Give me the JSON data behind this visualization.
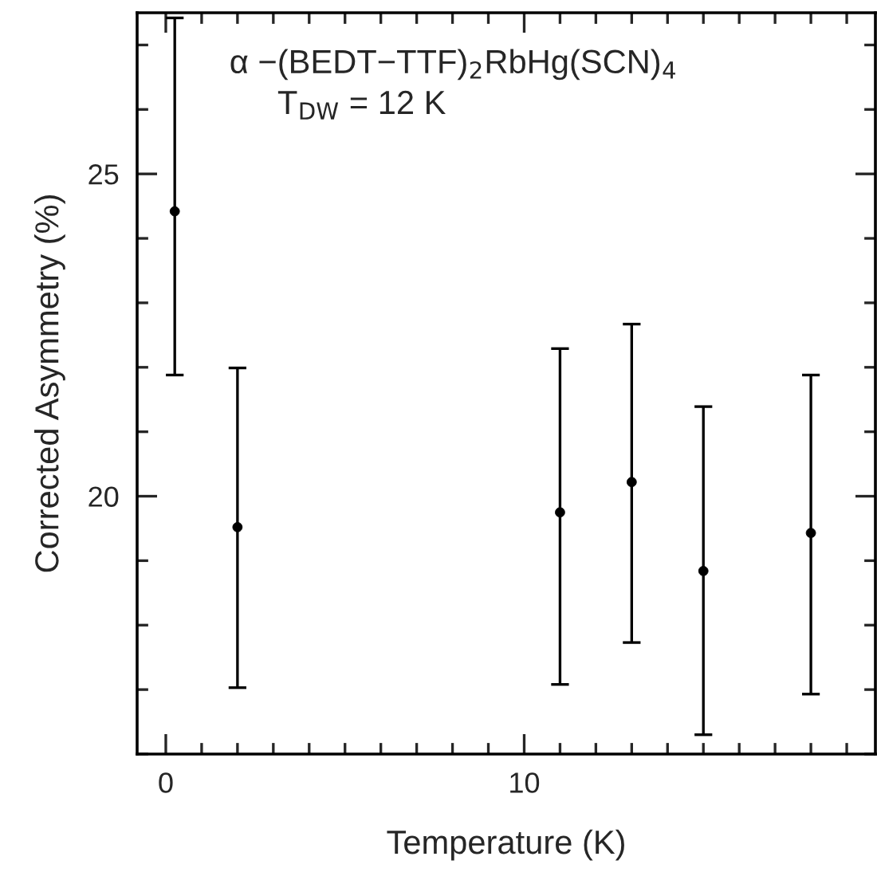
{
  "chart_data": {
    "type": "scatter",
    "xlabel": "Temperature (K)",
    "ylabel": "Corrected Asymmetry (%)",
    "annotations": [
      "α −(BEDT−TTF)$_{2}$RbHg(SCN)$_{4}$",
      "T$_{DW}$ = 12 K"
    ],
    "x": [
      0.25,
      2,
      11,
      13,
      15,
      18
    ],
    "values": [
      24.42,
      19.52,
      19.75,
      20.22,
      18.84,
      19.43
    ],
    "errors": [
      [
        21.88,
        27.42
      ],
      [
        17.03,
        21.99
      ],
      [
        17.08,
        22.29
      ],
      [
        17.73,
        22.67
      ],
      [
        16.3,
        21.39
      ],
      [
        16.93,
        21.88
      ]
    ],
    "color": "#000000",
    "marker": "circle",
    "grid": false,
    "legend": false,
    "xlim": [
      -0.8,
      19.8
    ],
    "ylim": [
      16,
      27.5
    ],
    "xticks": [
      0,
      {
        "value": 1,
        "label": null
      },
      {
        "value": 2,
        "label": null
      },
      {
        "value": 3,
        "label": null
      },
      {
        "value": 4,
        "label": null
      },
      {
        "value": 5,
        "label": null
      },
      {
        "value": 6,
        "label": null
      },
      {
        "value": 7,
        "label": null
      },
      {
        "value": 8,
        "label": null
      },
      {
        "value": 9,
        "label": null
      },
      10,
      {
        "value": 11,
        "label": null
      },
      {
        "value": 12,
        "label": null
      },
      {
        "value": 13,
        "label": null
      },
      {
        "value": 14,
        "label": null
      },
      {
        "value": 15,
        "label": null
      },
      {
        "value": 16,
        "label": null
      },
      {
        "value": 17,
        "label": null
      },
      {
        "value": 18,
        "label": null
      },
      {
        "value": 19,
        "label": null
      }
    ],
    "yticks": [
      {
        "value": 16,
        "label": null
      },
      {
        "value": 17,
        "label": null
      },
      {
        "value": 18,
        "label": null
      },
      {
        "value": 19,
        "label": null
      },
      20,
      {
        "value": 21,
        "label": null
      },
      {
        "value": 22,
        "label": null
      },
      {
        "value": 23,
        "label": null
      },
      {
        "value": 24,
        "label": null
      },
      25,
      {
        "value": 26,
        "label": null
      },
      {
        "value": 27,
        "label": null
      }
    ]
  }
}
